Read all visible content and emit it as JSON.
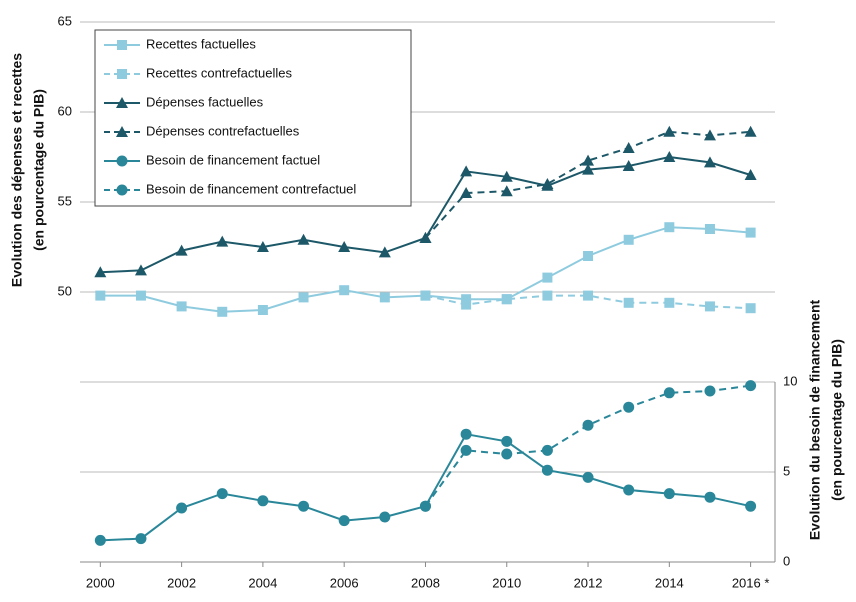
{
  "chart_data": {
    "type": "line",
    "ylabel": [
      "Evolution des dépenses et recettes",
      "(en pourcentage du PIB)"
    ],
    "y2label": [
      "Evolution du besoin de financement",
      "(en pourcentage du PIB)"
    ],
    "x": [
      2000,
      2001,
      2002,
      2003,
      2004,
      2005,
      2006,
      2007,
      2008,
      2009,
      2010,
      2011,
      2012,
      2013,
      2014,
      2015,
      2016
    ],
    "xlim": [
      1999.5,
      2016.6
    ],
    "xticks": [
      2000,
      2002,
      2004,
      2006,
      2008,
      2010,
      2012,
      2014,
      {
        "value": 2016,
        "label": "2016 *"
      }
    ],
    "ylim": [
      35,
      65
    ],
    "yticks": [
      50,
      55,
      60,
      65
    ],
    "y2lim": [
      0,
      30
    ],
    "y2ticks": [
      0,
      5,
      10
    ],
    "grid": true,
    "legend": "upper left",
    "series": [
      {
        "name": "Recettes factuelles",
        "color": "#8fcbdf",
        "marker": "square",
        "dash": false,
        "values": [
          49.8,
          49.8,
          49.2,
          48.9,
          49.0,
          49.7,
          50.1,
          49.7,
          49.8,
          49.6,
          49.6,
          50.8,
          52.0,
          52.9,
          53.6,
          53.5,
          53.3
        ]
      },
      {
        "name": "Recettes contrefactuelles",
        "color": "#8fcbdf",
        "marker": "square",
        "dash": true,
        "values": [
          null,
          null,
          null,
          null,
          null,
          null,
          null,
          null,
          49.8,
          49.3,
          49.6,
          49.8,
          49.8,
          49.4,
          49.4,
          49.2,
          49.1
        ]
      },
      {
        "name": "Dépenses factuelles",
        "color": "#1d5868",
        "marker": "triangle",
        "dash": false,
        "values": [
          51.1,
          51.2,
          52.3,
          52.8,
          52.5,
          52.9,
          52.5,
          52.2,
          53.0,
          56.7,
          56.4,
          55.9,
          56.8,
          57.0,
          57.5,
          57.2,
          56.5
        ]
      },
      {
        "name": "Dépenses contrefactuelles",
        "color": "#1d5868",
        "marker": "triangle",
        "dash": true,
        "values": [
          null,
          null,
          null,
          null,
          null,
          null,
          null,
          null,
          53.0,
          55.5,
          55.6,
          56.0,
          57.3,
          58.0,
          58.9,
          58.7,
          58.9
        ]
      },
      {
        "name": "Besoin de financement factuel",
        "color": "#2a8799",
        "marker": "circle",
        "dash": false,
        "axis": "y2",
        "values": [
          1.2,
          1.3,
          3.0,
          3.8,
          3.4,
          3.1,
          2.3,
          2.5,
          3.1,
          7.1,
          6.7,
          5.1,
          4.7,
          4.0,
          3.8,
          3.6,
          3.1
        ]
      },
      {
        "name": "Besoin de financement contrefactuel",
        "color": "#2a8799",
        "marker": "circle",
        "dash": true,
        "axis": "y2",
        "values": [
          null,
          null,
          null,
          null,
          null,
          null,
          null,
          null,
          3.1,
          6.2,
          6.0,
          6.2,
          7.6,
          8.6,
          9.4,
          9.5,
          9.8
        ]
      }
    ]
  }
}
